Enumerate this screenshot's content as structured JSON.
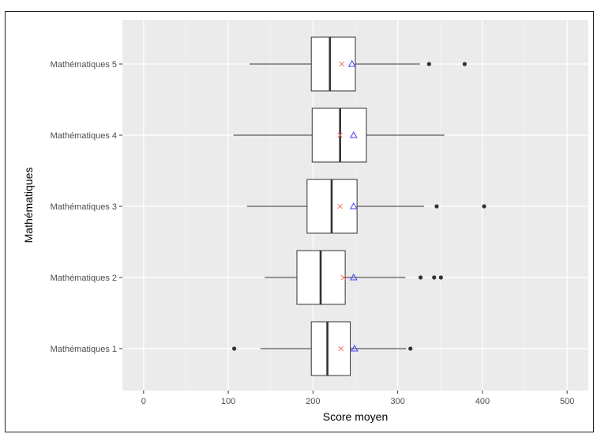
{
  "chart_data": {
    "type": "boxplot",
    "orientation": "horizontal",
    "xlabel": "Score moyen",
    "ylabel": "Mathématiques",
    "xlim": [
      -25,
      525
    ],
    "xticks": [
      0,
      100,
      200,
      300,
      400,
      500
    ],
    "grid": true,
    "categories": [
      "Mathématiques 1",
      "Mathématiques 2",
      "Mathématiques 3",
      "Mathématiques 4",
      "Mathématiques 5"
    ],
    "boxes": [
      {
        "category": "Mathématiques 1",
        "whisker_low": 138,
        "q1": 198,
        "median": 217,
        "q3": 244,
        "whisker_high": 310,
        "outliers": [
          107,
          315
        ],
        "mean_x": 233,
        "mean_triangle": 249
      },
      {
        "category": "Mathématiques 2",
        "whisker_low": 143,
        "q1": 181,
        "median": 209,
        "q3": 238,
        "whisker_high": 309,
        "outliers": [
          327,
          343,
          351
        ],
        "mean_x": 236,
        "mean_triangle": 248
      },
      {
        "category": "Mathématiques 3",
        "whisker_low": 122,
        "q1": 193,
        "median": 222,
        "q3": 252,
        "whisker_high": 331,
        "outliers": [
          346,
          402
        ],
        "mean_x": 232,
        "mean_triangle": 248
      },
      {
        "category": "Mathématiques 4",
        "whisker_low": 106,
        "q1": 199,
        "median": 232,
        "q3": 263,
        "whisker_high": 355,
        "outliers": [],
        "mean_x": 232,
        "mean_triangle": 248
      },
      {
        "category": "Mathématiques 5",
        "whisker_low": 125,
        "q1": 198,
        "median": 220,
        "q3": 250,
        "whisker_high": 326,
        "outliers": [
          337,
          379
        ],
        "mean_x": 234,
        "mean_triangle": 246
      }
    ],
    "colors": {
      "panel": "#ebebeb",
      "grid_major": "#ffffff",
      "grid_minor": "#f4f4f4",
      "box_fill": "#ffffff",
      "box_stroke": "#333333",
      "mean_x": "#f8766d",
      "mean_triangle": "#4040ff"
    }
  }
}
